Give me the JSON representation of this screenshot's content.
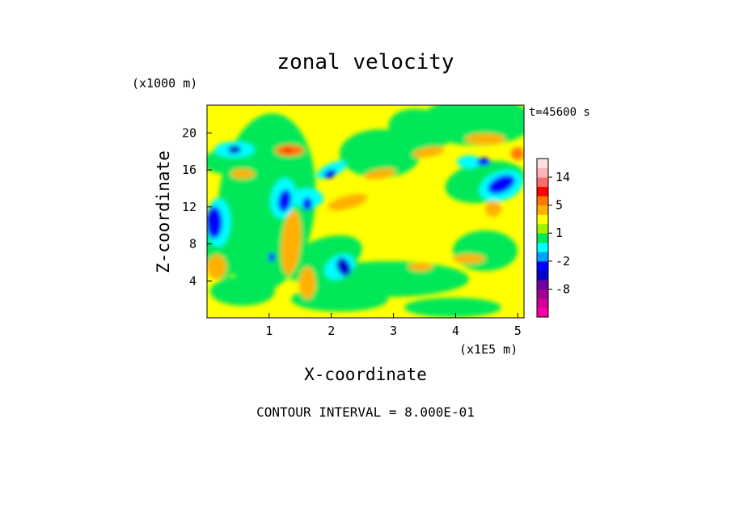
{
  "chart_data": {
    "type": "heatmap",
    "title": "zonal velocity",
    "xlabel": "X-coordinate",
    "ylabel": "Z-coordinate",
    "x_unit_label": "(x1E5 m)",
    "y_unit_label": "(x1000 m)",
    "time_label": "t=45600 s",
    "footer": "CONTOUR INTERVAL = 8.000E-01",
    "x_ticks": [
      "1",
      "2",
      "3",
      "4",
      "5"
    ],
    "x_tick_values": [
      1,
      2,
      3,
      4,
      5
    ],
    "y_ticks": [
      "4",
      "8",
      "12",
      "16",
      "20"
    ],
    "y_tick_values": [
      4,
      8,
      12,
      16,
      20
    ],
    "xlim": [
      0,
      5.1
    ],
    "ylim": [
      0,
      23
    ],
    "colorbar": {
      "levels": [
        -14,
        -12,
        -10,
        -8,
        -6,
        -4,
        -2,
        -1,
        0,
        1,
        2,
        3,
        5,
        8,
        11,
        14,
        17
      ],
      "colors": [
        "#ff00a0",
        "#d2009a",
        "#a0008f",
        "#7000a0",
        "#0000c8",
        "#0000ff",
        "#00a0ff",
        "#00ffff",
        "#00e858",
        "#a0f000",
        "#ffff00",
        "#ffb000",
        "#ff7800",
        "#ff0000",
        "#ff6a6a",
        "#ffb3b3",
        "#ffe0e0"
      ],
      "tick_labels": [
        "14",
        "5",
        "1",
        "-2",
        "-8"
      ],
      "tick_values": [
        14,
        5,
        1,
        -2,
        -8
      ]
    }
  }
}
